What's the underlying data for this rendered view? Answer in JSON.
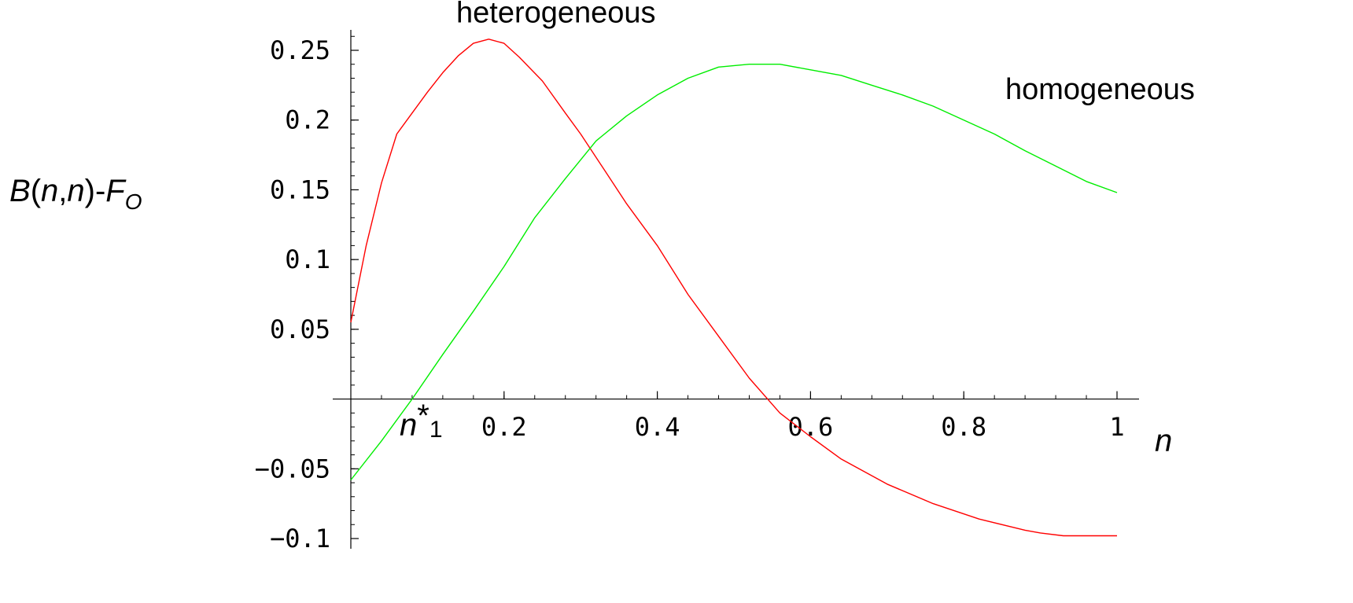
{
  "chart_data": {
    "type": "line",
    "xlim": [
      0,
      1
    ],
    "ylim": [
      -0.1,
      0.26
    ],
    "x_ticks": [
      0.2,
      0.4,
      0.6,
      0.8,
      1
    ],
    "x_tick_labels": [
      "0.2",
      "0.4",
      "0.6",
      "0.8",
      "1"
    ],
    "y_ticks": [
      -0.1,
      -0.05,
      0.05,
      0.1,
      0.15,
      0.2,
      0.25
    ],
    "y_tick_labels": [
      "-0.1",
      "-0.05",
      "0.05",
      "0.1",
      "0.15",
      "0.2",
      "0.25"
    ],
    "x_minor_step": 0.04,
    "y_minor_step": 0.01,
    "xlabel": "n",
    "ylabel": {
      "b": "B",
      "open": "(",
      "n1": "n",
      "comma": ",",
      "n2": "n",
      "close": ")-",
      "f": "F",
      "sub": "O"
    },
    "annotation": {
      "base": "n",
      "star": "*",
      "sub": "1",
      "x": 0.07,
      "y": 0
    },
    "grid": false,
    "series": [
      {
        "name": "heterogeneous",
        "color": "#ff0000",
        "label_x": 0.29,
        "label_y": 0.27,
        "points": [
          [
            0.0,
            0.055
          ],
          [
            0.02,
            0.11
          ],
          [
            0.04,
            0.155
          ],
          [
            0.06,
            0.19
          ],
          [
            0.08,
            0.205
          ],
          [
            0.1,
            0.22
          ],
          [
            0.12,
            0.234
          ],
          [
            0.14,
            0.246
          ],
          [
            0.16,
            0.255
          ],
          [
            0.18,
            0.258
          ],
          [
            0.2,
            0.255
          ],
          [
            0.22,
            0.245
          ],
          [
            0.25,
            0.228
          ],
          [
            0.28,
            0.205
          ],
          [
            0.3,
            0.19
          ],
          [
            0.33,
            0.165
          ],
          [
            0.36,
            0.14
          ],
          [
            0.4,
            0.11
          ],
          [
            0.44,
            0.075
          ],
          [
            0.48,
            0.045
          ],
          [
            0.52,
            0.015
          ],
          [
            0.56,
            -0.01
          ],
          [
            0.6,
            -0.027
          ],
          [
            0.64,
            -0.043
          ],
          [
            0.7,
            -0.061
          ],
          [
            0.76,
            -0.075
          ],
          [
            0.82,
            -0.086
          ],
          [
            0.88,
            -0.094
          ],
          [
            0.9,
            -0.096
          ],
          [
            0.93,
            -0.098
          ],
          [
            1.0,
            -0.098
          ]
        ]
      },
      {
        "name": "homogeneous",
        "color": "#00ee00",
        "label_x": 0.97,
        "label_y": 0.215,
        "points": [
          [
            0.0,
            -0.058
          ],
          [
            0.04,
            -0.03
          ],
          [
            0.08,
            0.0
          ],
          [
            0.12,
            0.032
          ],
          [
            0.16,
            0.063
          ],
          [
            0.2,
            0.095
          ],
          [
            0.24,
            0.13
          ],
          [
            0.28,
            0.158
          ],
          [
            0.32,
            0.185
          ],
          [
            0.36,
            0.203
          ],
          [
            0.4,
            0.218
          ],
          [
            0.44,
            0.23
          ],
          [
            0.48,
            0.238
          ],
          [
            0.52,
            0.24
          ],
          [
            0.56,
            0.24
          ],
          [
            0.6,
            0.236
          ],
          [
            0.64,
            0.232
          ],
          [
            0.68,
            0.225
          ],
          [
            0.72,
            0.218
          ],
          [
            0.76,
            0.21
          ],
          [
            0.8,
            0.2
          ],
          [
            0.84,
            0.19
          ],
          [
            0.88,
            0.178
          ],
          [
            0.92,
            0.167
          ],
          [
            0.96,
            0.156
          ],
          [
            1.0,
            0.148
          ]
        ]
      }
    ]
  }
}
